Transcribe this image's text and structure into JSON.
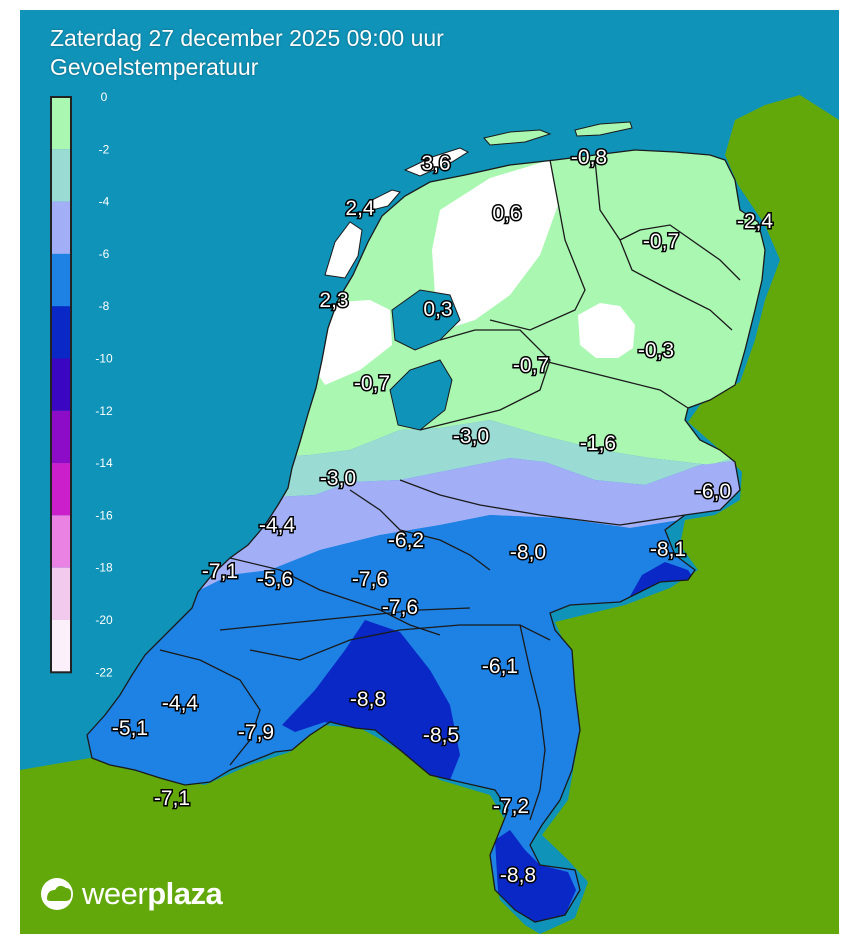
{
  "title": "Zaterdag 27 december 2025 09:00 uur",
  "subtitle": "Gevoelstemperatuur",
  "colors": {
    "sea": "#0f93b8",
    "land_abroad": "#62a80b",
    "border": "#1a1a1a"
  },
  "legend": {
    "ticks": [
      "0",
      "-2",
      "-4",
      "-6",
      "-8",
      "-10",
      "-12",
      "-14",
      "-16",
      "-18",
      "-20",
      "-22"
    ],
    "bands": [
      {
        "from": 0,
        "to": -2,
        "color": "#aaf7b2"
      },
      {
        "from": -2,
        "to": -4,
        "color": "#9adbd4"
      },
      {
        "from": -4,
        "to": -6,
        "color": "#a2aff6"
      },
      {
        "from": -6,
        "to": -8,
        "color": "#1e82e4"
      },
      {
        "from": -8,
        "to": -10,
        "color": "#0928c6"
      },
      {
        "from": -10,
        "to": -12,
        "color": "#3a06c2"
      },
      {
        "from": -12,
        "to": -14,
        "color": "#8c0cc8"
      },
      {
        "from": -14,
        "to": -16,
        "color": "#cc1fcc"
      },
      {
        "from": -16,
        "to": -18,
        "color": "#ea82e4"
      },
      {
        "from": -18,
        "to": -20,
        "color": "#f1caee"
      },
      {
        "from": -20,
        "to": -22,
        "color": "#fcf1fb"
      }
    ]
  },
  "values": [
    {
      "label": "3,6",
      "region": "Terschelling"
    },
    {
      "label": "-0,8",
      "region": "Schiermonnikoog"
    },
    {
      "label": "2,4",
      "region": "Vlieland"
    },
    {
      "label": "0,6",
      "region": "Friesland west"
    },
    {
      "label": "-2,4",
      "region": "Groningen oost"
    },
    {
      "label": "-0,7",
      "region": "Drenthe noord"
    },
    {
      "label": "2,3",
      "region": "Texel"
    },
    {
      "label": "0,3",
      "region": "IJsselmeer"
    },
    {
      "label": "-0,3",
      "region": "Drenthe zuid"
    },
    {
      "label": "-0,7",
      "region": "Noordoostpolder"
    },
    {
      "label": "-0,7",
      "region": "Noord-Holland"
    },
    {
      "label": "-3,0",
      "region": "Flevoland"
    },
    {
      "label": "-1,6",
      "region": "Overijssel"
    },
    {
      "label": "-3,0",
      "region": "Amsterdam"
    },
    {
      "label": "-6,0",
      "region": "Twente"
    },
    {
      "label": "-4,4",
      "region": "Zuid-Holland noord"
    },
    {
      "label": "-6,2",
      "region": "Utrecht"
    },
    {
      "label": "-8,0",
      "region": "Gelderland"
    },
    {
      "label": "-8,1",
      "region": "Achterhoek"
    },
    {
      "label": "-7,1",
      "region": "Rotterdam kust"
    },
    {
      "label": "-5,6",
      "region": "Zuid-Holland"
    },
    {
      "label": "-7,6",
      "region": "Rivierenland"
    },
    {
      "label": "-7,6",
      "region": "Betuwe"
    },
    {
      "label": "-6,1",
      "region": "Noord-Limburg"
    },
    {
      "label": "-8,8",
      "region": "Brabant midden"
    },
    {
      "label": "-4,4",
      "region": "Zeeland"
    },
    {
      "label": "-5,1",
      "region": "Walcheren"
    },
    {
      "label": "-7,9",
      "region": "Brabant west"
    },
    {
      "label": "-8,5",
      "region": "Brabant oost"
    },
    {
      "label": "-7,1",
      "region": "Zeeuws-Vlaanderen"
    },
    {
      "label": "-7,2",
      "region": "Midden-Limburg"
    },
    {
      "label": "-8,8",
      "region": "Zuid-Limburg"
    }
  ],
  "logo": {
    "part1": "weer",
    "part2": "plaza",
    "icon": "cloud-sun-icon"
  }
}
